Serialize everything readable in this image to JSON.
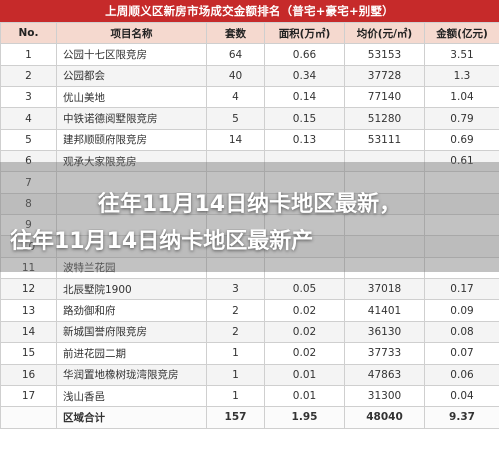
{
  "table_title": "上周顺义区新房市场成交金额排名（普宅+豪宅+别墅）",
  "headers": [
    "No.",
    "项目名称",
    "套数",
    "面积(万㎡)",
    "均价(元/㎡)",
    "金额(亿元)"
  ],
  "rows": [
    [
      "1",
      "公园十七区限竞房",
      "64",
      "0.66",
      "53153",
      "3.51"
    ],
    [
      "2",
      "公园都会",
      "40",
      "0.34",
      "37728",
      "1.3"
    ],
    [
      "3",
      "优山美地",
      "4",
      "0.14",
      "77140",
      "1.04"
    ],
    [
      "4",
      "中铁诺德阅墅限竞房",
      "5",
      "0.15",
      "51280",
      "0.79"
    ],
    [
      "5",
      "建邦顺颐府限竞房",
      "14",
      "0.13",
      "53111",
      "0.69"
    ],
    [
      "6",
      "观承大家限竞房",
      "",
      "",
      "",
      "0.61"
    ],
    [
      "7",
      "",
      "",
      "",
      "",
      ""
    ],
    [
      "8",
      "",
      "",
      "",
      "",
      ""
    ],
    [
      "9",
      "",
      "",
      "",
      "",
      ""
    ],
    [
      "10",
      "",
      "",
      "",
      "",
      ""
    ],
    [
      "11",
      "波特兰花园",
      "",
      "",
      "",
      ""
    ],
    [
      "12",
      "北辰墅院1900",
      "3",
      "0.05",
      "37018",
      "0.17"
    ],
    [
      "13",
      "路劲御和府",
      "2",
      "0.02",
      "41401",
      "0.09"
    ],
    [
      "14",
      "新城国誉府限竞房",
      "2",
      "0.02",
      "36130",
      "0.08"
    ],
    [
      "15",
      "前进花园二期",
      "1",
      "0.02",
      "37733",
      "0.07"
    ],
    [
      "16",
      "华润置地橡树珑湾限竞房",
      "1",
      "0.01",
      "47863",
      "0.06"
    ],
    [
      "17",
      "浅山香邑",
      "1",
      "0.01",
      "31300",
      "0.04"
    ]
  ],
  "total": [
    "",
    "区域合计",
    "157",
    "1.95",
    "48040",
    "9.37"
  ],
  "headline_line1": "往年11月14日纳卡地区最新，",
  "headline_line2": "往年11月14日纳卡地区最新产"
}
